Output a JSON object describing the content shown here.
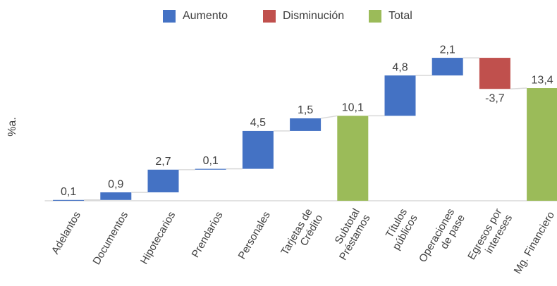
{
  "chart_data": {
    "type": "waterfall",
    "y_label": "%a.",
    "categories": [
      [
        "Adelantos"
      ],
      [
        "Documentos"
      ],
      [
        "Hipotecarios"
      ],
      [
        "Prendarios"
      ],
      [
        "Personales"
      ],
      [
        "Tarjetas de",
        "Crédito"
      ],
      [
        "Subtotal",
        "Préstamos"
      ],
      [
        "Títulos",
        "públicos"
      ],
      [
        "Operaciones",
        "de pase"
      ],
      [
        "Egresos por",
        "intereses"
      ],
      [
        "Mg. Financiero"
      ]
    ],
    "values": [
      0.1,
      0.9,
      2.7,
      0.1,
      4.5,
      1.5,
      10.1,
      4.8,
      2.1,
      -3.7,
      13.4
    ],
    "value_labels": [
      "0,1",
      "0,9",
      "2,7",
      "0,1",
      "4,5",
      "1,5",
      "10,1",
      "4,8",
      "2,1",
      "-3,7",
      "13,4"
    ],
    "kinds": [
      0,
      0,
      0,
      0,
      0,
      0,
      2,
      0,
      0,
      1,
      2
    ],
    "series": [
      {
        "name": "Aumento",
        "color": "#4472c4"
      },
      {
        "name": "Disminución",
        "color": "#c0504d"
      },
      {
        "name": "Total",
        "color": "#9bbb59"
      }
    ],
    "ylim": [
      0,
      16
    ]
  }
}
